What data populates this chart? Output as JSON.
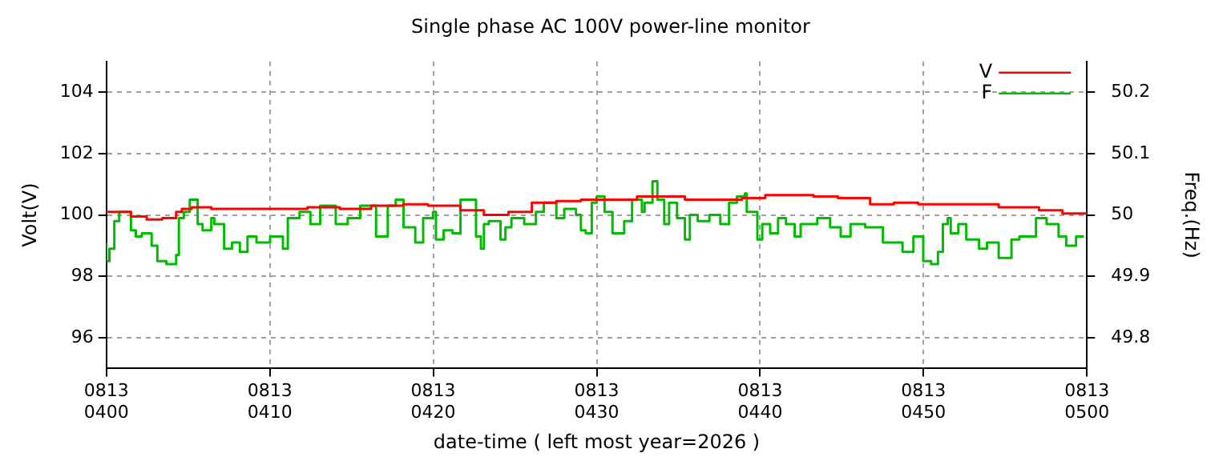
{
  "chart_data": {
    "type": "step",
    "title": "Single phase AC 100V power-line monitor",
    "xlabel": "date-time ( left most year=2026 )",
    "ylabel": "Volt(V)",
    "y2label": "Freq.(Hz)",
    "xlim": [
      "2026-08-13T04:00",
      "2026-08-13T05:00"
    ],
    "xticks": [
      {
        "value": "2026-08-13T04:00",
        "label": "0813\n0400"
      },
      {
        "value": "2026-08-13T04:10",
        "label": "0813\n0410"
      },
      {
        "value": "2026-08-13T04:20",
        "label": "0813\n0420"
      },
      {
        "value": "2026-08-13T04:30",
        "label": "0813\n0430"
      },
      {
        "value": "2026-08-13T04:40",
        "label": "0813\n0440"
      },
      {
        "value": "2026-08-13T04:50",
        "label": "0813\n0450"
      },
      {
        "value": "2026-08-13T05:00",
        "label": "0813\n0500"
      }
    ],
    "ylim": [
      95,
      105
    ],
    "yticks": [
      96,
      98,
      100,
      102,
      104
    ],
    "y2lim": [
      49.75,
      50.25
    ],
    "y2ticks": [
      49.8,
      49.9,
      50,
      50.1,
      50.2
    ],
    "grid": true,
    "legend": "top right",
    "line_style": "solid",
    "marker": "none",
    "series": [
      {
        "name": "V",
        "color": "#ff0000",
        "x": [
          "2026-08-13T04:00:00",
          "2026-08-13T04:01:30",
          "2026-08-13T04:02:28",
          "2026-08-13T04:03:25",
          "2026-08-13T04:04:16",
          "2026-08-13T04:04:37",
          "2026-08-13T04:05:13",
          "2026-08-13T04:06:25",
          "2026-08-13T04:08:20",
          "2026-08-13T04:10:19",
          "2026-08-13T04:12:18",
          "2026-08-13T04:14:17",
          "2026-08-13T04:16:12",
          "2026-08-13T04:18:11",
          "2026-08-13T04:19:41",
          "2026-08-13T04:21:40",
          "2026-08-13T04:23:06",
          "2026-08-13T04:24:36",
          "2026-08-13T04:26:02",
          "2026-08-13T04:27:32",
          "2026-08-13T04:29:02",
          "2026-08-13T04:30:29",
          "2026-08-13T04:32:28",
          "2026-08-13T04:33:58",
          "2026-08-13T04:35:24",
          "2026-08-13T04:36:54",
          "2026-08-13T04:38:53",
          "2026-08-13T04:40:19",
          "2026-08-13T04:43:16",
          "2026-08-13T04:44:46",
          "2026-08-13T04:46:44",
          "2026-08-13T04:48:11",
          "2026-08-13T04:49:41",
          "2026-08-13T04:51:40",
          "2026-08-13T04:54:36",
          "2026-08-13T04:57:04",
          "2026-08-13T04:58:30",
          "2026-08-13T05:00:00"
        ],
        "values": [
          100.1,
          100.1,
          99.95,
          99.85,
          99.9,
          100.1,
          100.2,
          100.25,
          100.2,
          100.2,
          100.2,
          100.25,
          100.2,
          100.3,
          100.35,
          100.3,
          100.15,
          100.0,
          100.1,
          100.4,
          100.45,
          100.5,
          100.5,
          100.6,
          100.6,
          100.5,
          100.5,
          100.55,
          100.65,
          100.6,
          100.55,
          100.35,
          100.4,
          100.35,
          100.35,
          100.25,
          100.15,
          100.05
        ]
      },
      {
        "name": "F",
        "color": "#00bb00",
        "axis": "y2",
        "x": [
          "2026-08-13T04:00:00",
          "2026-08-13T04:00:11",
          "2026-08-13T04:00:29",
          "2026-08-13T04:00:47",
          "2026-08-13T04:00:58",
          "2026-08-13T04:01:30",
          "2026-08-13T04:01:48",
          "2026-08-13T04:02:10",
          "2026-08-13T04:02:46",
          "2026-08-13T04:03:07",
          "2026-08-13T04:03:40",
          "2026-08-13T04:04:16",
          "2026-08-13T04:04:26",
          "2026-08-13T04:04:44",
          "2026-08-13T04:05:06",
          "2026-08-13T04:05:13",
          "2026-08-13T04:05:35",
          "2026-08-13T04:05:53",
          "2026-08-13T04:06:25",
          "2026-08-13T04:06:36",
          "2026-08-13T04:07:12",
          "2026-08-13T04:07:41",
          "2026-08-13T04:08:10",
          "2026-08-13T04:08:38",
          "2026-08-13T04:09:11",
          "2026-08-13T04:10:01",
          "2026-08-13T04:10:48",
          "2026-08-13T04:11:06",
          "2026-08-13T04:11:49",
          "2026-08-13T04:12:29",
          "2026-08-13T04:13:05",
          "2026-08-13T04:14:02",
          "2026-08-13T04:14:46",
          "2026-08-13T04:15:32",
          "2026-08-13T04:15:58",
          "2026-08-13T04:16:30",
          "2026-08-13T04:17:13",
          "2026-08-13T04:17:42",
          "2026-08-13T04:18:11",
          "2026-08-13T04:18:54",
          "2026-08-13T04:19:23",
          "2026-08-13T04:19:59",
          "2026-08-13T04:20:10",
          "2026-08-13T04:20:38",
          "2026-08-13T04:21:11",
          "2026-08-13T04:21:40",
          "2026-08-13T04:22:08",
          "2026-08-13T04:22:37",
          "2026-08-13T04:22:55",
          "2026-08-13T04:23:06",
          "2026-08-13T04:23:24",
          "2026-08-13T04:24:07",
          "2026-08-13T04:24:25",
          "2026-08-13T04:24:47",
          "2026-08-13T04:25:34",
          "2026-08-13T04:26:17",
          "2026-08-13T04:26:46",
          "2026-08-13T04:27:32",
          "2026-08-13T04:28:01",
          "2026-08-13T04:28:44",
          "2026-08-13T04:29:02",
          "2026-08-13T04:29:20",
          "2026-08-13T04:29:42",
          "2026-08-13T04:30:00",
          "2026-08-13T04:30:29",
          "2026-08-13T04:30:58",
          "2026-08-13T04:31:41",
          "2026-08-13T04:32:10",
          "2026-08-13T04:32:46",
          "2026-08-13T04:32:56",
          "2026-08-13T04:33:25",
          "2026-08-13T04:33:43",
          "2026-08-13T04:34:08",
          "2026-08-13T04:34:26",
          "2026-08-13T04:34:55",
          "2026-08-13T04:35:24",
          "2026-08-13T04:35:42",
          "2026-08-13T04:36:11",
          "2026-08-13T04:36:54",
          "2026-08-13T04:37:34",
          "2026-08-13T04:38:06",
          "2026-08-13T04:38:35",
          "2026-08-13T04:39:04",
          "2026-08-13T04:39:11",
          "2026-08-13T04:39:50",
          "2026-08-13T04:40:08",
          "2026-08-13T04:40:37",
          "2026-08-13T04:41:06",
          "2026-08-13T04:41:35",
          "2026-08-13T04:42:07",
          "2026-08-13T04:42:29",
          "2026-08-13T04:43:30",
          "2026-08-13T04:44:17",
          "2026-08-13T04:44:56",
          "2026-08-13T04:45:32",
          "2026-08-13T04:46:26",
          "2026-08-13T04:47:31",
          "2026-08-13T04:48:43",
          "2026-08-13T04:49:23",
          "2026-08-13T04:49:59",
          "2026-08-13T04:50:28",
          "2026-08-13T04:50:53",
          "2026-08-13T04:51:11",
          "2026-08-13T04:51:29",
          "2026-08-13T04:51:40",
          "2026-08-13T04:52:08",
          "2026-08-13T04:52:37",
          "2026-08-13T04:53:24",
          "2026-08-13T04:53:53",
          "2026-08-13T04:54:36",
          "2026-08-13T04:55:23",
          "2026-08-13T04:55:52",
          "2026-08-13T04:56:53",
          "2026-08-13T04:57:32",
          "2026-08-13T04:58:16",
          "2026-08-13T04:58:44",
          "2026-08-13T04:59:20",
          "2026-08-13T04:59:49"
        ],
        "values": [
          49.955,
          49.925,
          49.945,
          49.99,
          50.005,
          50.005,
          49.975,
          49.965,
          49.97,
          49.95,
          49.925,
          49.92,
          49.935,
          49.995,
          50.005,
          50.025,
          50.025,
          49.985,
          49.975,
          49.995,
          49.985,
          49.945,
          49.955,
          49.94,
          49.965,
          49.955,
          49.965,
          49.945,
          49.995,
          50.005,
          49.985,
          50.015,
          49.985,
          49.995,
          50.015,
          50.015,
          49.965,
          50.015,
          50.025,
          49.98,
          49.955,
          49.995,
          50.005,
          49.96,
          49.975,
          49.97,
          50.025,
          50.025,
          49.965,
          49.945,
          49.985,
          49.99,
          49.96,
          49.98,
          49.995,
          49.985,
          50.005,
          50.02,
          49.995,
          50.01,
          50.0,
          49.975,
          49.97,
          50.02,
          50.03,
          50.005,
          49.97,
          49.99,
          50.025,
          50.005,
          50.02,
          50.055,
          50.025,
          49.985,
          50.02,
          49.995,
          49.96,
          50.0,
          49.99,
          50.0,
          49.985,
          50.02,
          50.03,
          50.035,
          50.005,
          49.96,
          49.985,
          49.97,
          49.995,
          49.985,
          49.965,
          49.985,
          49.995,
          49.98,
          49.965,
          49.985,
          49.98,
          49.955,
          49.94,
          49.965,
          49.925,
          49.92,
          49.94,
          49.985,
          49.995,
          49.97,
          49.985,
          49.96,
          49.945,
          49.955,
          49.93,
          49.96,
          49.965,
          49.995,
          49.985,
          49.965,
          49.95,
          49.965
        ]
      }
    ]
  }
}
